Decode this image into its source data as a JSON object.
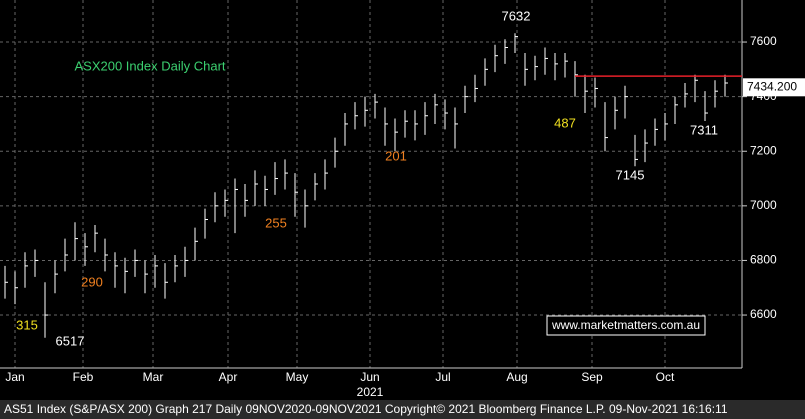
{
  "chart_data": {
    "type": "ohlc",
    "title": "ASX200 Index Daily Chart",
    "xlim": [
      0,
      74.2
    ],
    "xticks": [
      {
        "value": 1.5,
        "label": "Jan"
      },
      {
        "value": 8.3,
        "label": "Feb"
      },
      {
        "value": 15.3,
        "label": "Mar"
      },
      {
        "value": 22.8,
        "label": "Apr"
      },
      {
        "value": 29.7,
        "label": "May"
      },
      {
        "value": 37,
        "label": "Jun"
      },
      {
        "value": 44.3,
        "label": "Jul"
      },
      {
        "value": 51.7,
        "label": "Aug"
      },
      {
        "value": 59.2,
        "label": "Sep"
      },
      {
        "value": 66.5,
        "label": "Oct"
      }
    ],
    "year_label": "2021",
    "ylim": [
      6406,
      7754
    ],
    "yticks": [
      6600,
      6800,
      7000,
      7200,
      7400,
      7600
    ],
    "grid": true,
    "color": "#ffffff",
    "high": [
      6780,
      6760,
      6830,
      6840,
      6720,
      6800,
      6880,
      6940,
      6900,
      6930,
      6880,
      6830,
      6810,
      6840,
      6800,
      6820,
      6790,
      6820,
      6850,
      6920,
      6990,
      7050,
      7060,
      7100,
      7080,
      7130,
      7110,
      7160,
      7170,
      7120,
      7060,
      7120,
      7170,
      7250,
      7340,
      7380,
      7400,
      7410,
      7360,
      7320,
      7350,
      7350,
      7380,
      7410,
      7390,
      7360,
      7440,
      7480,
      7540,
      7590,
      7610,
      7632,
      7560,
      7550,
      7580,
      7560,
      7560,
      7530,
      7480,
      7470,
      7380,
      7400,
      7440,
      7260,
      7280,
      7320,
      7340,
      7400,
      7450,
      7480,
      7420,
      7460,
      7480
    ],
    "low": [
      6660,
      6640,
      6700,
      6740,
      6517,
      6680,
      6760,
      6800,
      6780,
      6830,
      6760,
      6700,
      6680,
      6740,
      6680,
      6700,
      6660,
      6720,
      6740,
      6800,
      6880,
      6940,
      6960,
      6900,
      6960,
      7000,
      7000,
      7040,
      7060,
      6960,
      6920,
      7020,
      7060,
      7140,
      7220,
      7280,
      7290,
      7320,
      7220,
      7200,
      7250,
      7240,
      7260,
      7300,
      7280,
      7210,
      7340,
      7380,
      7440,
      7490,
      7520,
      7560,
      7440,
      7460,
      7480,
      7460,
      7470,
      7400,
      7340,
      7360,
      7200,
      7280,
      7320,
      7145,
      7160,
      7220,
      7240,
      7300,
      7360,
      7380,
      7311,
      7360,
      7400
    ],
    "close": [
      6720,
      6700,
      6780,
      6800,
      6600,
      6750,
      6820,
      6880,
      6850,
      6900,
      6820,
      6780,
      6760,
      6800,
      6750,
      6780,
      6720,
      6780,
      6800,
      6870,
      6950,
      7000,
      7020,
      7060,
      7020,
      7080,
      7060,
      7100,
      7120,
      7050,
      7000,
      7080,
      7120,
      7200,
      7300,
      7330,
      7350,
      7380,
      7300,
      7270,
      7310,
      7300,
      7330,
      7370,
      7340,
      7300,
      7400,
      7430,
      7500,
      7550,
      7580,
      7620,
      7500,
      7510,
      7540,
      7520,
      7530,
      7480,
      7420,
      7430,
      7250,
      7350,
      7400,
      7170,
      7230,
      7280,
      7300,
      7370,
      7410,
      7460,
      7340,
      7420,
      7450
    ],
    "resistance": {
      "value": 7475,
      "color": "#e8202a"
    },
    "last_price": {
      "value": 7434.2,
      "label": "7434.200"
    },
    "annotations": [
      {
        "text": "7632",
        "color": "#ffffff"
      },
      {
        "text": "487",
        "color": "#f0e020"
      },
      {
        "text": "7145",
        "color": "#ffffff"
      },
      {
        "text": "7311",
        "color": "#ffffff"
      },
      {
        "text": "201",
        "color": "#f08020"
      },
      {
        "text": "255",
        "color": "#f08020"
      },
      {
        "text": "290",
        "color": "#f08020"
      },
      {
        "text": "315",
        "color": "#f0e020"
      },
      {
        "text": "6517",
        "color": "#ffffff"
      }
    ],
    "website": "www.marketmatters.com.au",
    "footer": "AS51 Index (S&P/ASX 200) Graph 217  Daily 09NOV2020-09NOV2021  Copyright© 2021 Bloomberg Finance L.P.  09-Nov-2021 16:16:11"
  }
}
